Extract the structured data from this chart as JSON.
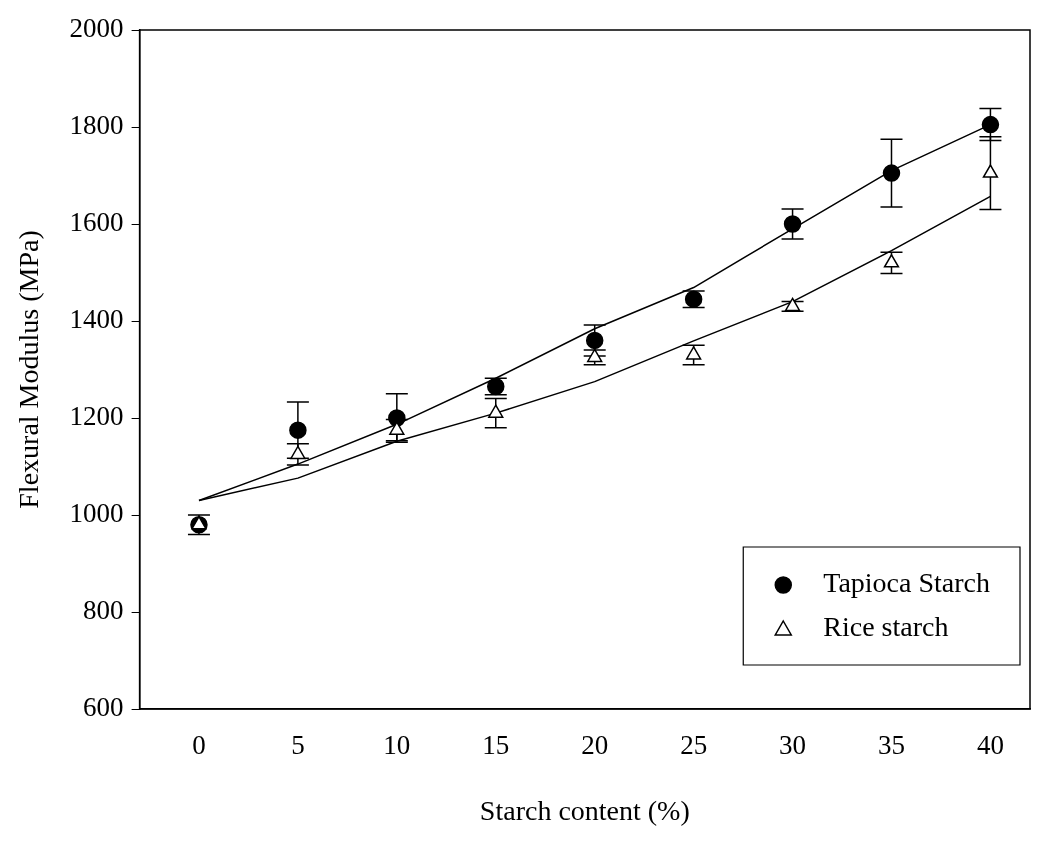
{
  "chart_data": {
    "type": "scatter",
    "xlabel": "Starch content (%)",
    "ylabel": "Flexural Modulus (MPa)",
    "xlim": [
      -3,
      42
    ],
    "xticks": [
      0,
      5,
      10,
      15,
      20,
      25,
      30,
      35,
      40
    ],
    "ylim": [
      600,
      2000
    ],
    "yticks": [
      600,
      800,
      1000,
      1200,
      1400,
      1600,
      1800,
      2000
    ],
    "grid": false,
    "legend": "bottom right",
    "series": [
      {
        "name": "Tapioca Starch",
        "marker": "circle",
        "color": "#000000",
        "x": [
          0,
          5,
          10,
          15,
          20,
          25,
          30,
          35,
          40
        ],
        "values": [
          980,
          1175,
          1200,
          1265,
          1360,
          1445,
          1600,
          1705,
          1805
        ],
        "errors": [
          null,
          58,
          50,
          17,
          32,
          17,
          31,
          70,
          33
        ]
      },
      {
        "name": "Rice starch",
        "marker": "triangle",
        "color": "#000000",
        "x": [
          0,
          5,
          10,
          15,
          20,
          25,
          30,
          35,
          40
        ],
        "values": [
          980,
          1125,
          1175,
          1210,
          1325,
          1330,
          1430,
          1520,
          1705
        ],
        "errors": [
          20,
          22,
          22,
          30,
          15,
          20,
          10,
          22,
          75
        ]
      },
      {
        "type": "line",
        "marker": "none",
        "line_style": "solid",
        "color": "#000000",
        "x": [
          0,
          5,
          10,
          15,
          20,
          25,
          30,
          35,
          40
        ],
        "values": [
          1030,
          1105,
          1187,
          1282,
          1384,
          1469,
          1590,
          1710,
          1805
        ]
      },
      {
        "type": "line",
        "marker": "none",
        "line_style": "solid",
        "color": "#000000",
        "x": [
          0,
          5,
          10,
          15,
          20,
          25,
          30,
          35,
          40
        ],
        "values": [
          1030,
          1076,
          1152,
          1210,
          1275,
          1359,
          1440,
          1545,
          1657
        ]
      }
    ]
  }
}
